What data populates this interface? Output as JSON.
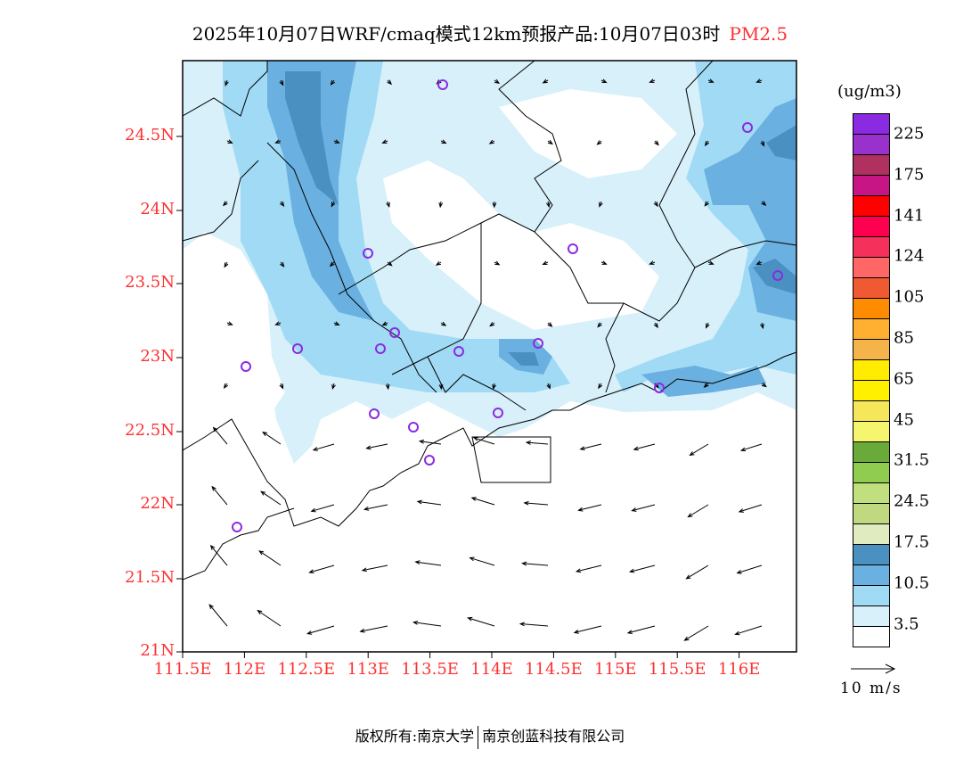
{
  "title": {
    "main": "2025年10月07日WRF/cmaq模式12km预报产品:10月07日03时",
    "pollutant": "PM2.5"
  },
  "axes": {
    "lat_labels": [
      "24.5N",
      "24N",
      "23.5N",
      "23N",
      "22.5N",
      "22N",
      "21.5N",
      "21N"
    ],
    "lon_labels": [
      "111.5E",
      "112E",
      "112.5E",
      "113E",
      "113.5E",
      "114E",
      "114.5E",
      "115E",
      "115.5E",
      "116E"
    ]
  },
  "colorbar": {
    "unit": "(ug/m3)",
    "colors": [
      "#8a2be2",
      "#9932cc",
      "#b03060",
      "#c71585",
      "#ff0000",
      "#ff0050",
      "#f5305a",
      "#ff6666",
      "#f05a32",
      "#ff8c00",
      "#ffb030",
      "#f5b44a",
      "#ffec00",
      "#fff000",
      "#f5e65a",
      "#f5f56e",
      "#6aaa3a",
      "#90cc50",
      "#c0e080",
      "#c0d880",
      "#e0ecc0",
      "#4a90c0",
      "#6ab0e0",
      "#a0daf5",
      "#d8f0fa",
      "#ffffff"
    ],
    "labels": [
      "225",
      "175",
      "141",
      "124",
      "105",
      "85",
      "65",
      "45",
      "31.5",
      "24.5",
      "17.5",
      "10.5",
      "3.5"
    ]
  },
  "wind_reference": "10 m/s",
  "copyright": {
    "left": "版权所有:南京大学",
    "right": "南京创蓝科技有限公司"
  }
}
